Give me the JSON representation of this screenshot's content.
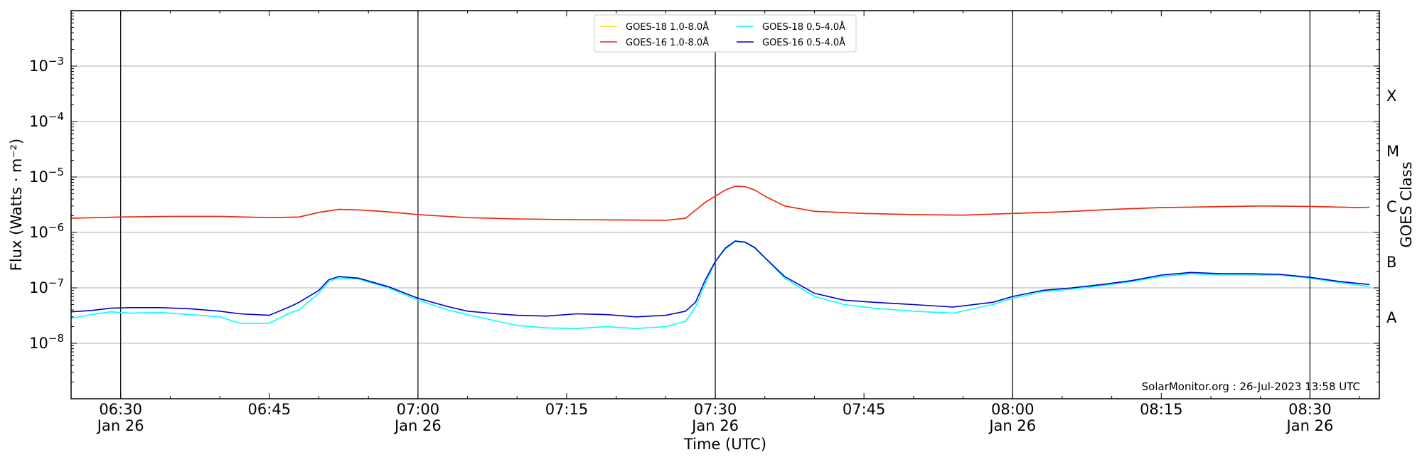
{
  "chart_data": {
    "type": "line",
    "xlabel": "Time (UTC)",
    "ylabel": "Flux (Watts · m⁻²)",
    "y2label": "GOES Class",
    "yscale": "log",
    "ylim": [
      1e-09,
      0.01
    ],
    "xlim": [
      "06:25",
      "08:37"
    ],
    "grid": "horizontal at each decade; vertical black lines at each half hour",
    "legend_position": "top-center",
    "x_ticks": [
      {
        "time": "06:30",
        "label": "06:30",
        "date": "Jan 26"
      },
      {
        "time": "06:45",
        "label": "06:45",
        "date": ""
      },
      {
        "time": "07:00",
        "label": "07:00",
        "date": "Jan 26"
      },
      {
        "time": "07:15",
        "label": "07:15",
        "date": ""
      },
      {
        "time": "07:30",
        "label": "07:30",
        "date": "Jan 26"
      },
      {
        "time": "07:45",
        "label": "07:45",
        "date": ""
      },
      {
        "time": "08:00",
        "label": "08:00",
        "date": "Jan 26"
      },
      {
        "time": "08:15",
        "label": "08:15",
        "date": ""
      },
      {
        "time": "08:30",
        "label": "08:30",
        "date": "Jan 26"
      }
    ],
    "vlines": [
      "06:30",
      "07:00",
      "07:30",
      "08:00",
      "08:30"
    ],
    "y_ticks": [
      {
        "exp": -8,
        "value": 1e-08,
        "base": "10",
        "sup": "−8"
      },
      {
        "exp": -7,
        "value": 1e-07,
        "base": "10",
        "sup": "−7"
      },
      {
        "exp": -6,
        "value": 1e-06,
        "base": "10",
        "sup": "−6"
      },
      {
        "exp": -5,
        "value": 1e-05,
        "base": "10",
        "sup": "−5"
      },
      {
        "exp": -4,
        "value": 0.0001,
        "base": "10",
        "sup": "−4"
      },
      {
        "exp": -3,
        "value": 0.001,
        "base": "10",
        "sup": "−3"
      }
    ],
    "goes_classes": [
      {
        "label": "A",
        "value": 3e-08
      },
      {
        "label": "B",
        "value": 3e-07
      },
      {
        "label": "C",
        "value": 3e-06
      },
      {
        "label": "M",
        "value": 3e-05
      },
      {
        "label": "X",
        "value": 0.0003
      }
    ],
    "series": [
      {
        "name": "GOES-18 1.0-8.0Å",
        "color": "#ffd700",
        "x": [
          "06:25",
          "06:30",
          "06:35",
          "06:40",
          "06:45",
          "06:48",
          "06:50",
          "06:52",
          "06:54",
          "06:57",
          "07:00",
          "07:05",
          "07:10",
          "07:15",
          "07:20",
          "07:25",
          "07:27",
          "07:29",
          "07:31",
          "07:32",
          "07:33",
          "07:34",
          "07:35",
          "07:37",
          "07:40",
          "07:45",
          "07:50",
          "07:55",
          "08:00",
          "08:05",
          "08:10",
          "08:15",
          "08:20",
          "08:25",
          "08:30",
          "08:35",
          "08:36"
        ],
        "values": [
          1.8e-06,
          1.9e-06,
          1.95e-06,
          1.95e-06,
          1.85e-06,
          1.9e-06,
          2.3e-06,
          2.6e-06,
          2.55e-06,
          2.35e-06,
          2.1e-06,
          1.85e-06,
          1.75e-06,
          1.7e-06,
          1.68e-06,
          1.65e-06,
          1.8e-06,
          3.5e-06,
          5.8e-06,
          6.8e-06,
          6.7e-06,
          5.8e-06,
          4.5e-06,
          3e-06,
          2.4e-06,
          2.2e-06,
          2.1e-06,
          2.05e-06,
          2.2e-06,
          2.35e-06,
          2.6e-06,
          2.8e-06,
          2.9e-06,
          3e-06,
          2.95e-06,
          2.8e-06,
          2.85e-06
        ]
      },
      {
        "name": "GOES-16 1.0-8.0Å",
        "color": "#e8251c",
        "x": [
          "06:25",
          "06:30",
          "06:35",
          "06:40",
          "06:45",
          "06:48",
          "06:50",
          "06:52",
          "06:54",
          "06:57",
          "07:00",
          "07:05",
          "07:10",
          "07:15",
          "07:20",
          "07:25",
          "07:27",
          "07:29",
          "07:31",
          "07:32",
          "07:33",
          "07:34",
          "07:35",
          "07:37",
          "07:40",
          "07:45",
          "07:50",
          "07:55",
          "08:00",
          "08:05",
          "08:10",
          "08:15",
          "08:20",
          "08:25",
          "08:30",
          "08:35",
          "08:36"
        ],
        "values": [
          1.8e-06,
          1.9e-06,
          1.95e-06,
          1.95e-06,
          1.85e-06,
          1.9e-06,
          2.3e-06,
          2.6e-06,
          2.55e-06,
          2.35e-06,
          2.1e-06,
          1.85e-06,
          1.75e-06,
          1.7e-06,
          1.68e-06,
          1.65e-06,
          1.8e-06,
          3.5e-06,
          5.8e-06,
          6.8e-06,
          6.7e-06,
          5.8e-06,
          4.5e-06,
          3e-06,
          2.4e-06,
          2.2e-06,
          2.1e-06,
          2.05e-06,
          2.2e-06,
          2.35e-06,
          2.6e-06,
          2.8e-06,
          2.9e-06,
          3e-06,
          2.95e-06,
          2.8e-06,
          2.85e-06
        ]
      },
      {
        "name": "GOES-18 0.5-4.0Å",
        "color": "#00ffff",
        "x": [
          "06:25",
          "06:27",
          "06:29",
          "06:31",
          "06:34",
          "06:37",
          "06:40",
          "06:42",
          "06:45",
          "06:47",
          "06:48",
          "06:50",
          "06:51",
          "06:52",
          "06:54",
          "06:57",
          "07:00",
          "07:03",
          "07:05",
          "07:08",
          "07:10",
          "07:13",
          "07:16",
          "07:19",
          "07:22",
          "07:25",
          "07:27",
          "07:28",
          "07:29",
          "07:30",
          "07:31",
          "07:32",
          "07:33",
          "07:34",
          "07:35",
          "07:37",
          "07:40",
          "07:43",
          "07:46",
          "07:50",
          "07:54",
          "07:58",
          "08:00",
          "08:03",
          "08:06",
          "08:09",
          "08:12",
          "08:15",
          "08:18",
          "08:21",
          "08:24",
          "08:27",
          "08:30",
          "08:33",
          "08:36"
        ],
        "values": [
          2.8e-08,
          3.3e-08,
          3.7e-08,
          3.5e-08,
          3.6e-08,
          3.3e-08,
          3e-08,
          2.3e-08,
          2.3e-08,
          3.5e-08,
          4e-08,
          8e-08,
          1.3e-07,
          1.5e-07,
          1.45e-07,
          1e-07,
          6e-08,
          4e-08,
          3.3e-08,
          2.5e-08,
          2.1e-08,
          1.9e-08,
          1.85e-08,
          2e-08,
          1.85e-08,
          2e-08,
          2.5e-08,
          4.5e-08,
          1.2e-07,
          3e-07,
          5e-07,
          6.8e-07,
          6.6e-07,
          5.2e-07,
          3.5e-07,
          1.5e-07,
          7e-08,
          5e-08,
          4.3e-08,
          3.8e-08,
          3.5e-08,
          5e-08,
          6.5e-08,
          8.5e-08,
          9.5e-08,
          1.1e-07,
          1.3e-07,
          1.6e-07,
          1.8e-07,
          1.7e-07,
          1.7e-07,
          1.7e-07,
          1.5e-07,
          1.25e-07,
          1.05e-07
        ]
      },
      {
        "name": "GOES-16 0.5-4.0Å",
        "color": "#0000cc",
        "x": [
          "06:25",
          "06:27",
          "06:29",
          "06:31",
          "06:34",
          "06:37",
          "06:40",
          "06:42",
          "06:45",
          "06:47",
          "06:48",
          "06:50",
          "06:51",
          "06:52",
          "06:54",
          "06:57",
          "07:00",
          "07:03",
          "07:05",
          "07:08",
          "07:10",
          "07:13",
          "07:16",
          "07:19",
          "07:22",
          "07:25",
          "07:27",
          "07:28",
          "07:29",
          "07:30",
          "07:31",
          "07:32",
          "07:33",
          "07:34",
          "07:35",
          "07:37",
          "07:40",
          "07:43",
          "07:46",
          "07:50",
          "07:54",
          "07:58",
          "08:00",
          "08:03",
          "08:06",
          "08:09",
          "08:12",
          "08:15",
          "08:18",
          "08:21",
          "08:24",
          "08:27",
          "08:30",
          "08:33",
          "08:36"
        ],
        "values": [
          3.7e-08,
          3.9e-08,
          4.3e-08,
          4.4e-08,
          4.4e-08,
          4.2e-08,
          3.8e-08,
          3.4e-08,
          3.2e-08,
          4.5e-08,
          5.5e-08,
          9e-08,
          1.4e-07,
          1.6e-07,
          1.5e-07,
          1.05e-07,
          6.5e-08,
          4.6e-08,
          3.8e-08,
          3.4e-08,
          3.2e-08,
          3.1e-08,
          3.4e-08,
          3.3e-08,
          3e-08,
          3.2e-08,
          3.8e-08,
          5.5e-08,
          1.4e-07,
          3e-07,
          5.2e-07,
          7e-07,
          6.7e-07,
          5.3e-07,
          3.5e-07,
          1.6e-07,
          8e-08,
          6e-08,
          5.5e-08,
          5e-08,
          4.5e-08,
          5.5e-08,
          7e-08,
          9e-08,
          1e-07,
          1.15e-07,
          1.35e-07,
          1.7e-07,
          1.9e-07,
          1.8e-07,
          1.8e-07,
          1.75e-07,
          1.55e-07,
          1.3e-07,
          1.15e-07
        ]
      }
    ]
  },
  "watermark": "SolarMonitor.org : 26-Jul-2023 13:58 UTC"
}
